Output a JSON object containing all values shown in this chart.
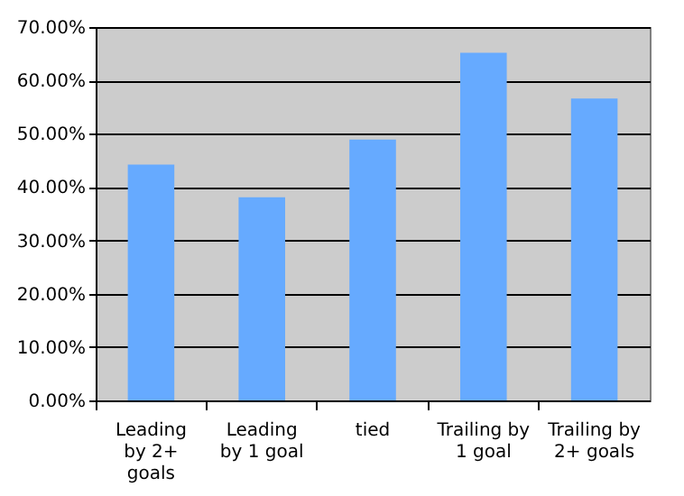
{
  "chart_data": {
    "type": "bar",
    "categories": [
      "Leading by 2+ goals",
      "Leading by 1 goal",
      "tied",
      "Trailing by 1 goal",
      "Trailing by 2+ goals"
    ],
    "values": [
      44.2,
      38.1,
      48.9,
      65.2,
      56.6
    ],
    "color": "#66aaff",
    "ylim": [
      0,
      70
    ],
    "yticks": [
      {
        "value": 0,
        "label": "0.00%"
      },
      {
        "value": 10,
        "label": "10.00%"
      },
      {
        "value": 20,
        "label": "20.00%"
      },
      {
        "value": 30,
        "label": "30.00%"
      },
      {
        "value": 40,
        "label": "40.00%"
      },
      {
        "value": 50,
        "label": "50.00%"
      },
      {
        "value": 60,
        "label": "60.00%"
      },
      {
        "value": 70,
        "label": "70.00%"
      }
    ],
    "grid": "y"
  }
}
